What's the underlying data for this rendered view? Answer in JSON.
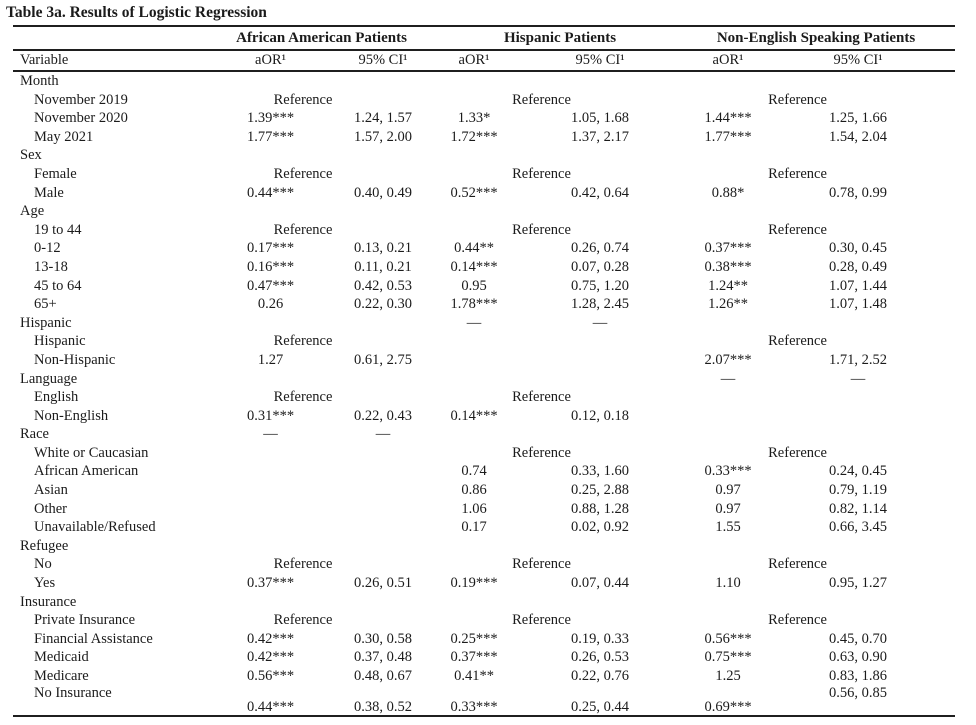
{
  "colors": {
    "background": "#ffffff",
    "text": "#1b1b1b",
    "rule": "#1f1f1f"
  },
  "title": "Table 3a. Results of Logistic Regression",
  "table": {
    "reference_label": "Reference",
    "header": {
      "variable_label": "Variable",
      "groups": [
        {
          "label": "African American Patients",
          "aor_label": "aOR¹",
          "ci_label": "95% CI¹"
        },
        {
          "label": "Hispanic Patients",
          "aor_label": "aOR¹",
          "ci_label": "95% CI¹"
        },
        {
          "label": "Non-English Speaking Patients",
          "aor_label": "aOR¹",
          "ci_label": "95% CI¹"
        }
      ]
    },
    "rows": [
      {
        "label": "Month",
        "indent": 0,
        "groups": [
          null,
          null,
          null
        ]
      },
      {
        "label": "November 2019",
        "indent": 1,
        "groups": [
          "R",
          "R",
          "R"
        ]
      },
      {
        "label": "November 2020",
        "indent": 1,
        "groups": [
          [
            "1.39***",
            "1.24, 1.57"
          ],
          [
            "1.33*",
            "1.05, 1.68"
          ],
          [
            "1.44***",
            "1.25, 1.66"
          ]
        ]
      },
      {
        "label": "May 2021",
        "indent": 1,
        "groups": [
          [
            "1.77***",
            "1.57, 2.00"
          ],
          [
            "1.72***",
            "1.37, 2.17"
          ],
          [
            "1.77***",
            "1.54, 2.04"
          ]
        ]
      },
      {
        "label": "Sex",
        "indent": 0,
        "groups": [
          null,
          null,
          null
        ]
      },
      {
        "label": "Female",
        "indent": 1,
        "groups": [
          "R",
          "R",
          "R"
        ]
      },
      {
        "label": "Male",
        "indent": 1,
        "groups": [
          [
            "0.44***",
            "0.40, 0.49"
          ],
          [
            "0.52***",
            "0.42, 0.64"
          ],
          [
            "0.88*",
            "0.78, 0.99"
          ]
        ]
      },
      {
        "label": "Age",
        "indent": 0,
        "groups": [
          null,
          null,
          null
        ]
      },
      {
        "label": "19 to 44",
        "indent": 1,
        "groups": [
          "R",
          "R",
          "R"
        ]
      },
      {
        "label": "0-12",
        "indent": 1,
        "groups": [
          [
            "0.17***",
            "0.13, 0.21"
          ],
          [
            "0.44**",
            "0.26, 0.74"
          ],
          [
            "0.37***",
            "0.30, 0.45"
          ]
        ]
      },
      {
        "label": "13-18",
        "indent": 1,
        "groups": [
          [
            "0.16***",
            "0.11, 0.21"
          ],
          [
            "0.14***",
            "0.07, 0.28"
          ],
          [
            "0.38***",
            "0.28, 0.49"
          ]
        ]
      },
      {
        "label": "45 to 64",
        "indent": 1,
        "groups": [
          [
            "0.47***",
            "0.42, 0.53"
          ],
          [
            "0.95",
            "0.75, 1.20"
          ],
          [
            "1.24**",
            "1.07, 1.44"
          ]
        ]
      },
      {
        "label": "65+",
        "indent": 1,
        "groups": [
          [
            "0.26",
            "0.22, 0.30"
          ],
          [
            "1.78***",
            "1.28, 2.45"
          ],
          [
            "1.26**",
            "1.07, 1.48"
          ]
        ]
      },
      {
        "label": "Hispanic",
        "indent": 0,
        "groups": [
          null,
          [
            "—",
            "—"
          ],
          null
        ]
      },
      {
        "label": "Hispanic",
        "indent": 1,
        "groups": [
          "R",
          null,
          "R"
        ]
      },
      {
        "label": "Non-Hispanic",
        "indent": 1,
        "groups": [
          [
            "1.27",
            "0.61, 2.75"
          ],
          null,
          [
            "2.07***",
            "1.71, 2.52"
          ]
        ]
      },
      {
        "label": "Language",
        "indent": 0,
        "groups": [
          null,
          null,
          [
            "—",
            "—"
          ]
        ]
      },
      {
        "label": "English",
        "indent": 1,
        "groups": [
          "R",
          "R",
          null
        ]
      },
      {
        "label": "Non-English",
        "indent": 1,
        "groups": [
          [
            "0.31***",
            "0.22, 0.43"
          ],
          [
            "0.14***",
            "0.12, 0.18"
          ],
          null
        ]
      },
      {
        "label": "Race",
        "indent": 0,
        "groups": [
          [
            "—",
            "—"
          ],
          null,
          null
        ]
      },
      {
        "label": "White or Caucasian",
        "indent": 1,
        "groups": [
          null,
          "R",
          "R"
        ]
      },
      {
        "label": "African American",
        "indent": 1,
        "groups": [
          null,
          [
            "0.74",
            "0.33, 1.60"
          ],
          [
            "0.33***",
            "0.24, 0.45"
          ]
        ]
      },
      {
        "label": "Asian",
        "indent": 1,
        "groups": [
          null,
          [
            "0.86",
            "0.25, 2.88"
          ],
          [
            "0.97",
            "0.79, 1.19"
          ]
        ]
      },
      {
        "label": "Other",
        "indent": 1,
        "groups": [
          null,
          [
            "1.06",
            "0.88, 1.28"
          ],
          [
            "0.97",
            "0.82, 1.14"
          ]
        ]
      },
      {
        "label": "Unavailable/Refused",
        "indent": 1,
        "groups": [
          null,
          [
            "0.17",
            "0.02, 0.92"
          ],
          [
            "1.55",
            "0.66, 3.45"
          ]
        ]
      },
      {
        "label": "Refugee",
        "indent": 0,
        "groups": [
          null,
          null,
          null
        ]
      },
      {
        "label": "No",
        "indent": 1,
        "groups": [
          "R",
          "R",
          "R"
        ]
      },
      {
        "label": "Yes",
        "indent": 1,
        "groups": [
          [
            "0.37***",
            "0.26, 0.51"
          ],
          [
            "0.19***",
            "0.07, 0.44"
          ],
          [
            "1.10",
            "0.95, 1.27"
          ]
        ]
      },
      {
        "label": "Insurance",
        "indent": 0,
        "groups": [
          null,
          null,
          null
        ]
      },
      {
        "label": "Private Insurance",
        "indent": 1,
        "groups": [
          "R",
          "R",
          "R"
        ]
      },
      {
        "label": "Financial Assistance",
        "indent": 1,
        "groups": [
          [
            "0.42***",
            "0.30, 0.58"
          ],
          [
            "0.25***",
            "0.19, 0.33"
          ],
          [
            "0.56***",
            "0.45, 0.70"
          ]
        ]
      },
      {
        "label": "Medicaid",
        "indent": 1,
        "groups": [
          [
            "0.42***",
            "0.37, 0.48"
          ],
          [
            "0.37***",
            "0.26, 0.53"
          ],
          [
            "0.75***",
            "0.63, 0.90"
          ]
        ]
      },
      {
        "label": "Medicare",
        "indent": 1,
        "groups": [
          [
            "0.56***",
            "0.48, 0.67"
          ],
          [
            "0.41**",
            "0.22, 0.76"
          ],
          [
            "1.25",
            "0.83, 1.86"
          ]
        ]
      },
      {
        "label": "No Insurance",
        "indent": 1,
        "half": true,
        "groups": [
          null,
          null,
          [
            "",
            "0.56, 0.85"
          ]
        ]
      },
      {
        "label": "",
        "indent": 1,
        "half": true,
        "groups": [
          [
            "0.44***",
            "0.38, 0.52"
          ],
          [
            "0.33***",
            "0.25, 0.44"
          ],
          [
            "0.69***",
            ""
          ]
        ]
      }
    ]
  }
}
